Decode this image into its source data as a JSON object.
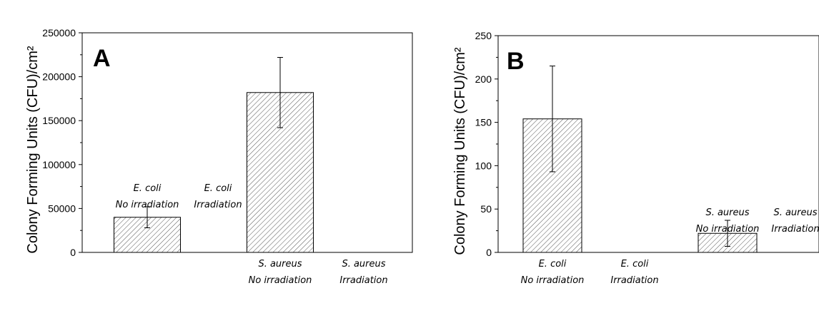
{
  "chart_data": [
    {
      "type": "bar",
      "panel_letter": "A",
      "ylabel": "Colony Forming Units (CFU)/cm²",
      "ylim": [
        0,
        250000
      ],
      "yticks": [
        0,
        50000,
        100000,
        150000,
        200000,
        250000
      ],
      "ytick_labels": [
        "0",
        "50000",
        "100000",
        "150000",
        "200000",
        "250000"
      ],
      "bars": [
        {
          "label1": "E. coli",
          "label2": "No irradiation",
          "value": 40000,
          "error": 12000
        },
        {
          "label1": "E. coli",
          "label2": "Irradiation",
          "value": 0,
          "error": null
        },
        {
          "label1": "S. aureus",
          "label2": "No irradiation",
          "value": 182000,
          "error": 40000
        },
        {
          "label1": "S. aureus",
          "label2": "Irradiation",
          "value": 0,
          "error": null
        }
      ]
    },
    {
      "type": "bar",
      "panel_letter": "B",
      "ylabel": "Colony Forming Units (CFU)/cm²",
      "ylim": [
        0,
        250
      ],
      "yticks": [
        0,
        50,
        100,
        150,
        200,
        250
      ],
      "ytick_labels": [
        "0",
        "50",
        "100",
        "150",
        "200",
        "250"
      ],
      "bars": [
        {
          "label1": "E. coli",
          "label2": "No irradiation",
          "value": 154,
          "error": 61
        },
        {
          "label1": "E. coli",
          "label2": "Irradiation",
          "value": 0,
          "error": null
        },
        {
          "label1": "S. aureus",
          "label2": "No irradiation",
          "value": 22,
          "error": 15
        },
        {
          "label1": "S. aureus",
          "label2": "Irradiation",
          "value": 0,
          "error": null
        }
      ]
    }
  ]
}
